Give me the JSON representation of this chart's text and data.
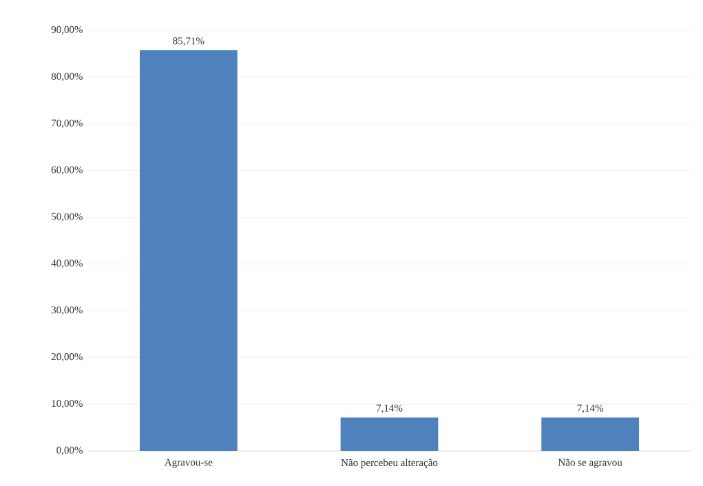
{
  "chart_data": {
    "type": "bar",
    "categories": [
      "Agravou-se",
      "Não percebeu alteração",
      "Não se agravou"
    ],
    "values": [
      85.71,
      7.14,
      7.14
    ],
    "value_labels": [
      "85,71%",
      "7,14%",
      "7,14%"
    ],
    "color": "#4f81bd",
    "ylim": [
      0,
      90
    ],
    "yticks": [
      {
        "value": 0,
        "label": "0,00%"
      },
      {
        "value": 10,
        "label": "10,00%"
      },
      {
        "value": 20,
        "label": "20,00%"
      },
      {
        "value": 30,
        "label": "30,00%"
      },
      {
        "value": 40,
        "label": "40,00%"
      },
      {
        "value": 50,
        "label": "50,00%"
      },
      {
        "value": 60,
        "label": "60,00%"
      },
      {
        "value": 70,
        "label": "70,00%"
      },
      {
        "value": 80,
        "label": "80,00%"
      },
      {
        "value": 90,
        "label": "90,00%"
      }
    ],
    "grid": "y"
  }
}
